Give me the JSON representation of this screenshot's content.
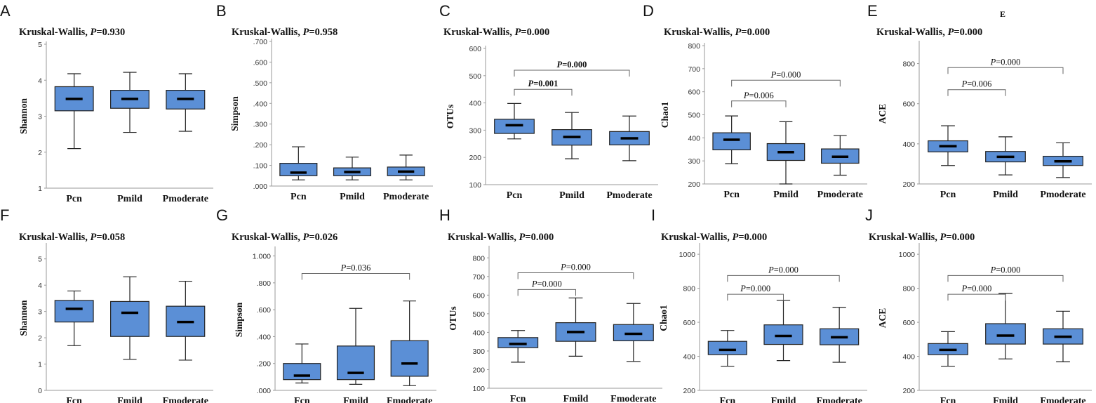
{
  "chart_data": [
    {
      "panel": "A",
      "type": "box",
      "title_prefix": "Kruskal-Wallis, ",
      "title_p": "P",
      "title_value": "=0.930",
      "ylabel": "Shannon",
      "ylim": [
        1,
        5
      ],
      "yticks": [
        "1",
        "2",
        "3",
        "4",
        "5"
      ],
      "tick_values": [
        1,
        2,
        3,
        4,
        5
      ],
      "categories": [
        "Pcn",
        "Pmild",
        "Pmoderate"
      ],
      "boxes": [
        {
          "min": 2.1,
          "q1": 3.15,
          "median": 3.48,
          "q3": 3.82,
          "max": 4.18
        },
        {
          "min": 2.55,
          "q1": 3.22,
          "median": 3.48,
          "q3": 3.72,
          "max": 4.22
        },
        {
          "min": 2.58,
          "q1": 3.2,
          "median": 3.48,
          "q3": 3.72,
          "max": 4.18
        }
      ],
      "brackets": []
    },
    {
      "panel": "B",
      "type": "box",
      "title_prefix": "Kruskal-Wallis, ",
      "title_p": "P",
      "title_value": "=0.958",
      "ylabel": "Simpson",
      "ylim": [
        0,
        0.7
      ],
      "yticks": [
        ".000",
        ".100",
        ".200",
        ".300",
        ".400",
        ".500",
        ".600",
        ".700"
      ],
      "tick_values": [
        0,
        0.1,
        0.2,
        0.3,
        0.4,
        0.5,
        0.6,
        0.7
      ],
      "categories": [
        "Pcn",
        "Pmild",
        "Pmoderate"
      ],
      "boxes": [
        {
          "min": 0.03,
          "q1": 0.05,
          "median": 0.065,
          "q3": 0.11,
          "max": 0.19
        },
        {
          "min": 0.03,
          "q1": 0.05,
          "median": 0.068,
          "q3": 0.088,
          "max": 0.14
        },
        {
          "min": 0.03,
          "q1": 0.05,
          "median": 0.07,
          "q3": 0.092,
          "max": 0.15
        }
      ],
      "brackets": []
    },
    {
      "panel": "C",
      "type": "box",
      "title_prefix": "Kruskal-Wallis, ",
      "title_p": "P",
      "title_value": "=0.000",
      "ylabel": "OTUs",
      "ylim": [
        100,
        600
      ],
      "yticks": [
        "100",
        "200",
        "300",
        "400",
        "500",
        "600"
      ],
      "tick_values": [
        100,
        200,
        300,
        400,
        500,
        600
      ],
      "categories": [
        "Pcn",
        "Pmild",
        "Pmoderate"
      ],
      "boxes": [
        {
          "min": 268,
          "q1": 288,
          "median": 318,
          "q3": 340,
          "max": 398
        },
        {
          "min": 195,
          "q1": 245,
          "median": 275,
          "q3": 302,
          "max": 365
        },
        {
          "min": 188,
          "q1": 246,
          "median": 270,
          "q3": 295,
          "max": 352
        }
      ],
      "brackets": [
        {
          "from": 0,
          "to": 1,
          "y": 450,
          "p": "P",
          "value": "=0.001",
          "bold": true
        },
        {
          "from": 0,
          "to": 2,
          "y": 520,
          "p": "P",
          "value": "=0.000",
          "bold": true
        }
      ]
    },
    {
      "panel": "D",
      "type": "box",
      "title_prefix": "Kruskal-Wallis, ",
      "title_p": "P",
      "title_value": "=0.000",
      "ylabel": "Chao1",
      "ylim": [
        200,
        800
      ],
      "yticks": [
        "200",
        "300",
        "400",
        "500",
        "600",
        "700",
        "800"
      ],
      "tick_values": [
        200,
        300,
        400,
        500,
        600,
        700,
        800
      ],
      "categories": [
        "Pcn",
        "Pmild",
        "Pmoderate"
      ],
      "boxes": [
        {
          "min": 288,
          "q1": 348,
          "median": 392,
          "q3": 422,
          "max": 495
        },
        {
          "min": 200,
          "q1": 302,
          "median": 338,
          "q3": 375,
          "max": 470
        },
        {
          "min": 238,
          "q1": 290,
          "median": 318,
          "q3": 352,
          "max": 410
        }
      ],
      "brackets": [
        {
          "from": 0,
          "to": 1,
          "y": 560,
          "p": "P",
          "value": "=0.006",
          "bold": false
        },
        {
          "from": 0,
          "to": 2,
          "y": 650,
          "p": "P",
          "value": "=0.000",
          "bold": false
        }
      ]
    },
    {
      "panel": "E",
      "type": "box",
      "title_prefix": "Kruskal-Wallis, ",
      "title_p": "P",
      "title_value": "=0.000",
      "top_note": "E",
      "ylabel": "ACE",
      "ylim": [
        200,
        900
      ],
      "yticks": [
        "200",
        "400",
        "600",
        "800"
      ],
      "tick_values": [
        200,
        400,
        600,
        800
      ],
      "categories": [
        "Pcn",
        "Pmild",
        "Pmoderate"
      ],
      "boxes": [
        {
          "min": 292,
          "q1": 360,
          "median": 388,
          "q3": 415,
          "max": 490
        },
        {
          "min": 245,
          "q1": 310,
          "median": 335,
          "q3": 362,
          "max": 435
        },
        {
          "min": 232,
          "q1": 292,
          "median": 313,
          "q3": 338,
          "max": 405
        }
      ],
      "brackets": [
        {
          "from": 0,
          "to": 1,
          "y": 670,
          "p": "P",
          "value": "=0.006",
          "bold": false
        },
        {
          "from": 0,
          "to": 2,
          "y": 780,
          "p": "P",
          "value": "=0.000",
          "bold": false
        }
      ]
    },
    {
      "panel": "F",
      "type": "box",
      "title_prefix": "Kruskal-Wallis, ",
      "title_p": "P",
      "title_value": "=0.058",
      "ylabel": "Shannon",
      "ylim": [
        0,
        5.5
      ],
      "yticks": [
        "0",
        "1",
        "2",
        "3",
        "4",
        "5"
      ],
      "tick_values": [
        0,
        1,
        2,
        3,
        4,
        5
      ],
      "categories": [
        "Fcn",
        "Fmild",
        "Fmoderate"
      ],
      "boxes": [
        {
          "min": 1.7,
          "q1": 2.6,
          "median": 3.1,
          "q3": 3.42,
          "max": 3.78
        },
        {
          "min": 1.18,
          "q1": 2.05,
          "median": 2.95,
          "q3": 3.38,
          "max": 4.32
        },
        {
          "min": 1.15,
          "q1": 2.05,
          "median": 2.6,
          "q3": 3.2,
          "max": 4.15
        }
      ],
      "brackets": []
    },
    {
      "panel": "G",
      "type": "box",
      "title_prefix": "Kruskal-Wallis, ",
      "title_p": "P",
      "title_value": "=0.026",
      "ylabel": "Simpson",
      "ylim": [
        0,
        1.05
      ],
      "yticks": [
        ".000",
        ".200",
        ".400",
        ".600",
        ".800",
        "1.000"
      ],
      "tick_values": [
        0,
        0.2,
        0.4,
        0.6,
        0.8,
        1.0
      ],
      "categories": [
        "Fcn",
        "Fmild",
        "Fmoderate"
      ],
      "boxes": [
        {
          "min": 0.055,
          "q1": 0.08,
          "median": 0.11,
          "q3": 0.2,
          "max": 0.345
        },
        {
          "min": 0.045,
          "q1": 0.08,
          "median": 0.13,
          "q3": 0.33,
          "max": 0.61
        },
        {
          "min": 0.035,
          "q1": 0.105,
          "median": 0.2,
          "q3": 0.37,
          "max": 0.665
        }
      ],
      "brackets": [
        {
          "from": 0,
          "to": 2,
          "y": 0.87,
          "p": "P",
          "value": "=0.036",
          "bold": false
        }
      ]
    },
    {
      "panel": "H",
      "type": "box",
      "title_prefix": "Kruskal-Wallis, ",
      "title_p": "P",
      "title_value": "=0.000",
      "ylabel": "OTUs",
      "ylim": [
        100,
        850
      ],
      "yticks": [
        "100",
        "200",
        "300",
        "400",
        "500",
        "600",
        "700",
        "800"
      ],
      "tick_values": [
        100,
        200,
        300,
        400,
        500,
        600,
        700,
        800
      ],
      "categories": [
        "Fcn",
        "Fmild",
        "Fmoderate"
      ],
      "boxes": [
        {
          "min": 240,
          "q1": 318,
          "median": 338,
          "q3": 372,
          "max": 410
        },
        {
          "min": 272,
          "q1": 352,
          "median": 402,
          "q3": 452,
          "max": 585
        },
        {
          "min": 244,
          "q1": 355,
          "median": 392,
          "q3": 442,
          "max": 555
        }
      ],
      "brackets": [
        {
          "from": 0,
          "to": 1,
          "y": 630,
          "p": "P",
          "value": "=0.000",
          "bold": false
        },
        {
          "from": 0,
          "to": 2,
          "y": 720,
          "p": "P",
          "value": "=0.000",
          "bold": false
        }
      ]
    },
    {
      "panel": "I",
      "type": "box",
      "title_prefix": "Kruskal-Wallis, ",
      "title_p": "P",
      "title_value": "=0.000",
      "ylabel": "Chao1",
      "ylim": [
        200,
        1050
      ],
      "yticks": [
        "200",
        "400",
        "600",
        "800",
        "1000"
      ],
      "tick_values": [
        200,
        400,
        600,
        800,
        1000
      ],
      "categories": [
        "Fcn",
        "Fmild",
        "Fmoderate"
      ],
      "boxes": [
        {
          "min": 342,
          "q1": 410,
          "median": 438,
          "q3": 488,
          "max": 552
        },
        {
          "min": 375,
          "q1": 470,
          "median": 520,
          "q3": 585,
          "max": 730
        },
        {
          "min": 365,
          "q1": 468,
          "median": 512,
          "q3": 562,
          "max": 688
        }
      ],
      "brackets": [
        {
          "from": 0,
          "to": 1,
          "y": 765,
          "p": "P",
          "value": "=0.000",
          "bold": false
        },
        {
          "from": 0,
          "to": 2,
          "y": 875,
          "p": "P",
          "value": "=0.000",
          "bold": false
        }
      ]
    },
    {
      "panel": "J",
      "type": "box",
      "title_prefix": "Kruskal-Wallis, ",
      "title_p": "P",
      "title_value": "=0.000",
      "ylabel": "ACE",
      "ylim": [
        200,
        1050
      ],
      "yticks": [
        "200",
        "400",
        "600",
        "800",
        "1000"
      ],
      "tick_values": [
        200,
        400,
        600,
        800,
        1000
      ],
      "categories": [
        "Fcn",
        "Fmild",
        "Fmoderate"
      ],
      "boxes": [
        {
          "min": 342,
          "q1": 410,
          "median": 438,
          "q3": 475,
          "max": 545
        },
        {
          "min": 385,
          "q1": 472,
          "median": 522,
          "q3": 592,
          "max": 770
        },
        {
          "min": 368,
          "q1": 472,
          "median": 515,
          "q3": 562,
          "max": 665
        }
      ],
      "brackets": [
        {
          "from": 0,
          "to": 1,
          "y": 765,
          "p": "P",
          "value": "=0.000",
          "bold": false
        },
        {
          "from": 0,
          "to": 2,
          "y": 875,
          "p": "P",
          "value": "=0.000",
          "bold": false
        }
      ]
    }
  ],
  "colors": {
    "box_fill": "#5b8fd6",
    "box_stroke": "#222222",
    "median": "#000000",
    "axis": "#9a9a9a",
    "text": "#111111"
  }
}
